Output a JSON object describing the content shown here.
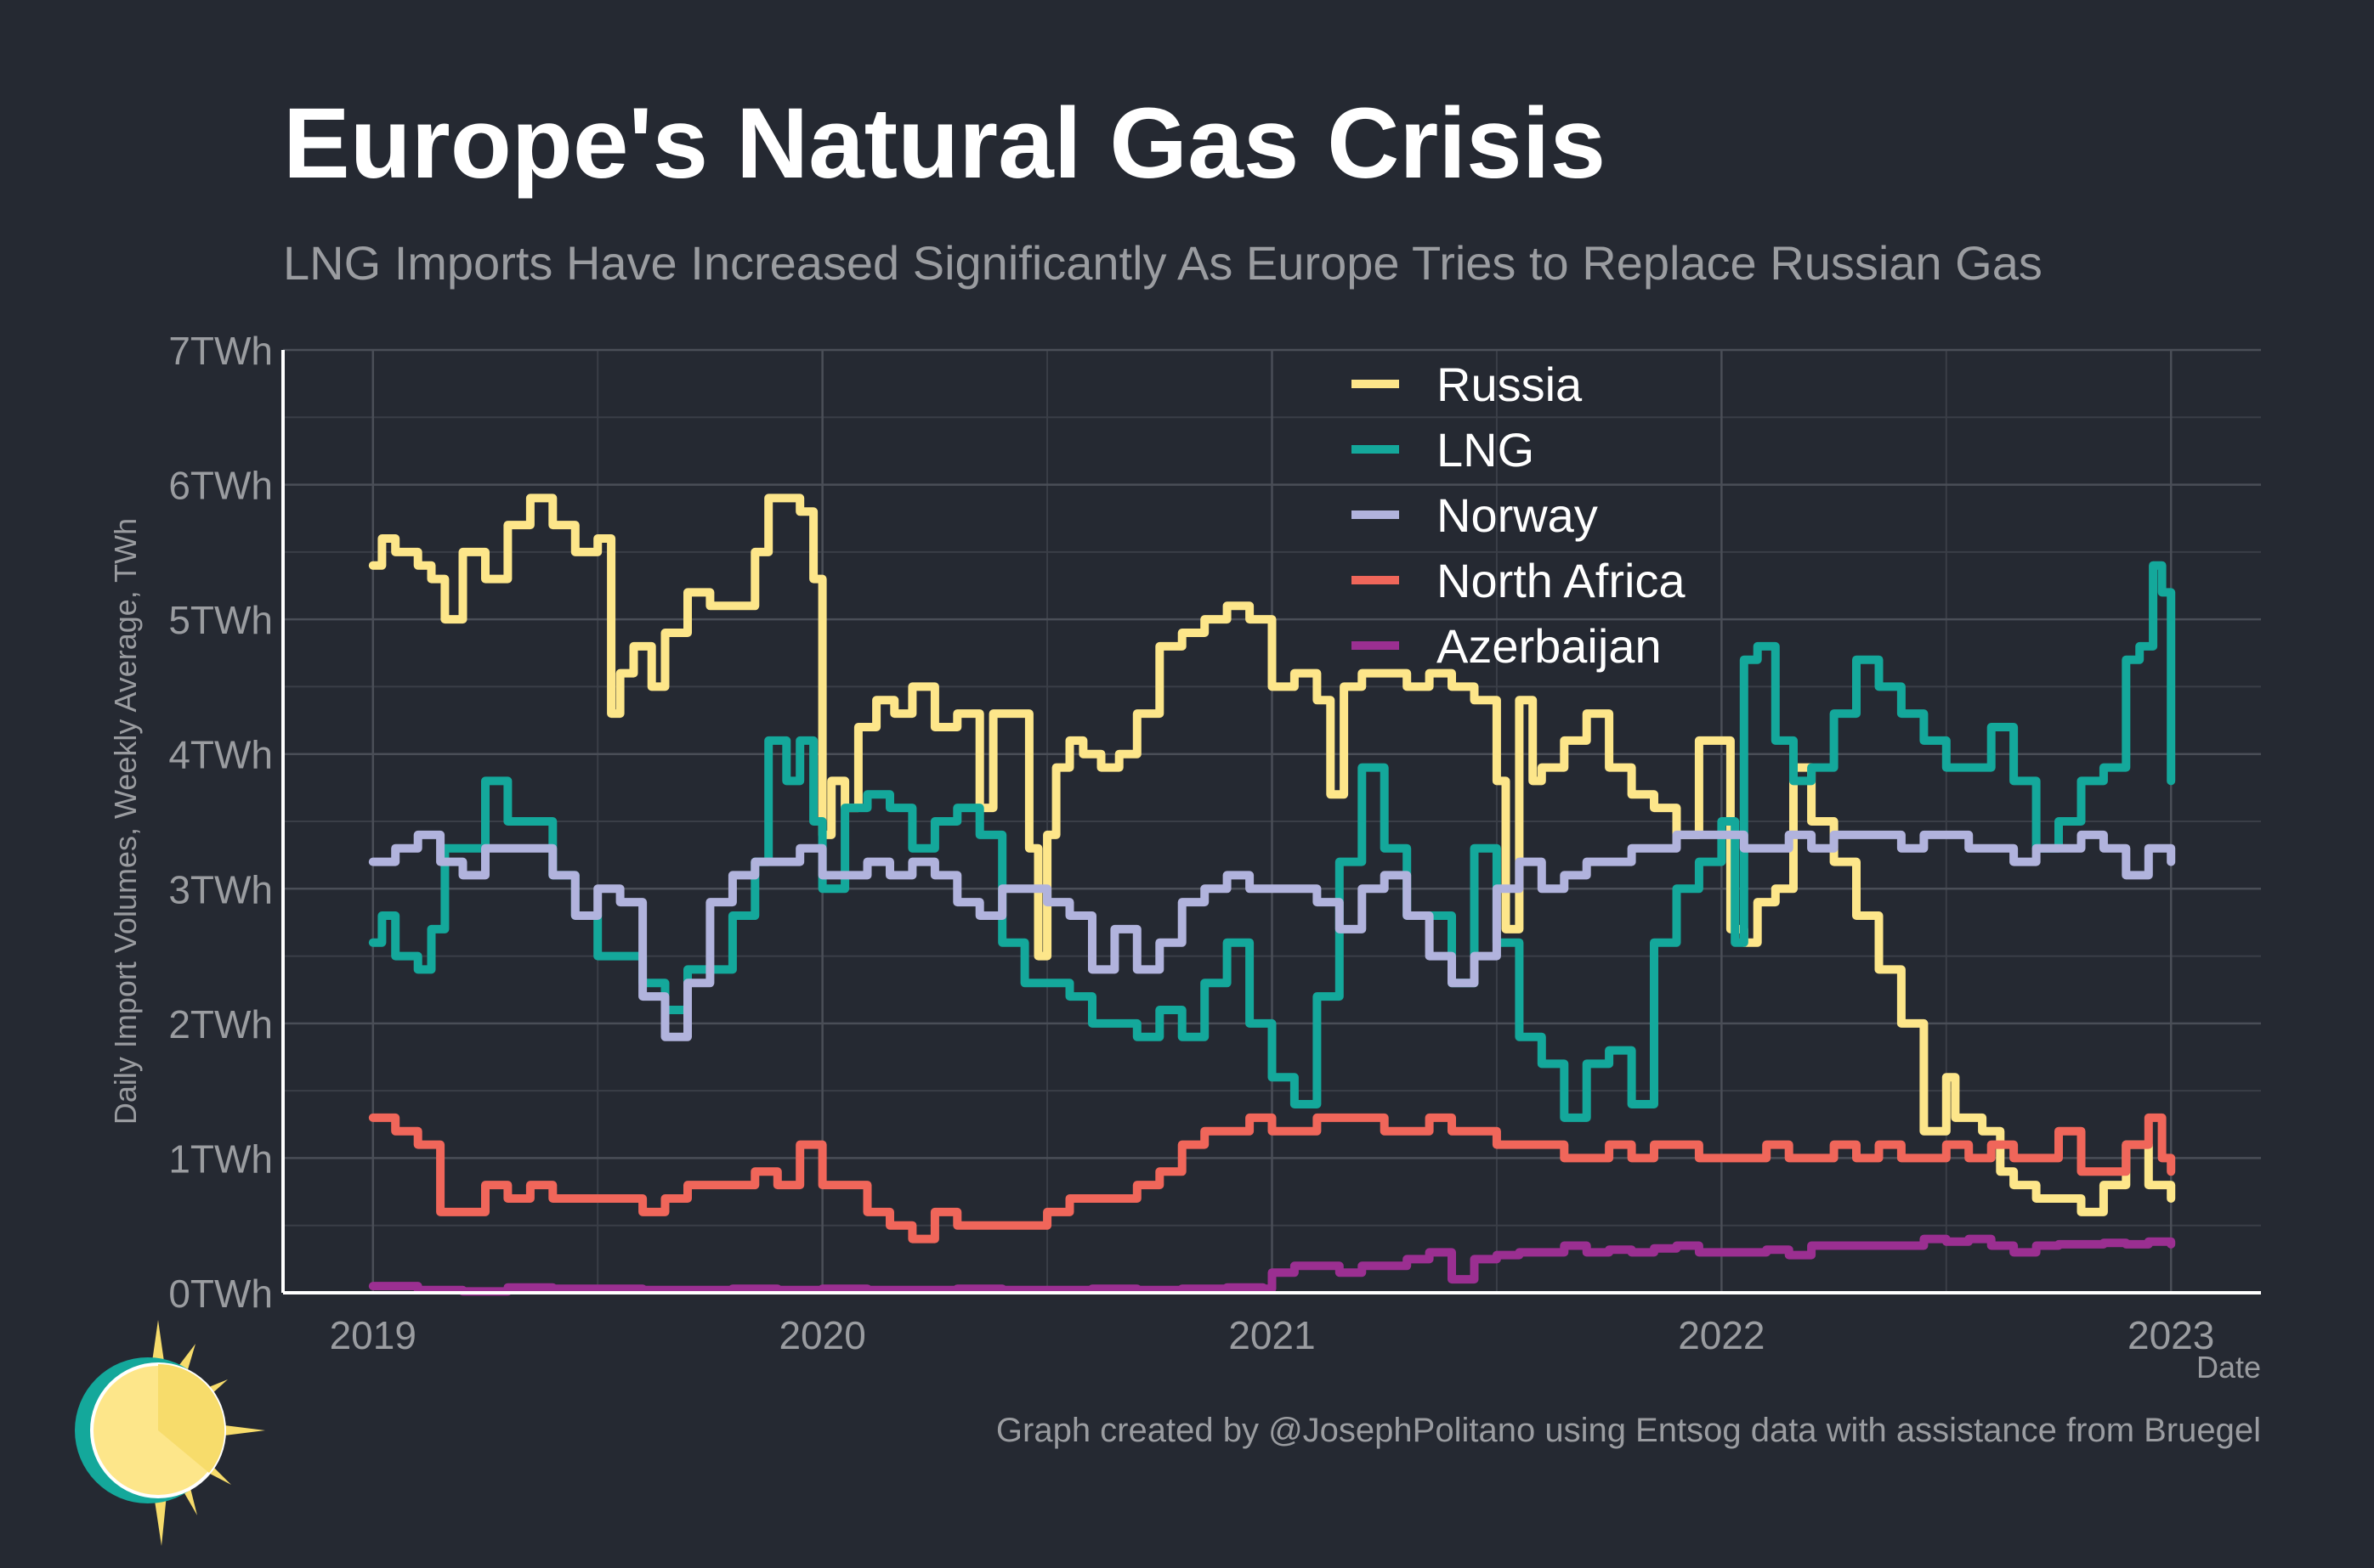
{
  "title": "Europe's Natural Gas Crisis",
  "subtitle": "LNG Imports Have Increased Significantly As Europe Tries to Replace Russian Gas",
  "caption": "Graph created by @JosephPolitano using Entsog data with assistance from Bruegel",
  "logo_icon": "sun-logo-icon",
  "chart_data": {
    "type": "line",
    "step": true,
    "title": "Europe's Natural Gas Crisis",
    "xlabel": "Date",
    "ylabel": "Daily Import Volumes, Weekly Average, TWh",
    "xlim": [
      2018.8,
      2023.2
    ],
    "ylim": [
      0,
      7
    ],
    "x_ticks": [
      {
        "value": 2019,
        "label": "2019"
      },
      {
        "value": 2020,
        "label": "2020"
      },
      {
        "value": 2021,
        "label": "2021"
      },
      {
        "value": 2022,
        "label": "2022"
      },
      {
        "value": 2023,
        "label": "2023"
      }
    ],
    "y_ticks": [
      {
        "value": 0,
        "label": "0TWh"
      },
      {
        "value": 1,
        "label": "1TWh"
      },
      {
        "value": 2,
        "label": "2TWh"
      },
      {
        "value": 3,
        "label": "3TWh"
      },
      {
        "value": 4,
        "label": "4TWh"
      },
      {
        "value": 5,
        "label": "5TWh"
      },
      {
        "value": 6,
        "label": "6TWh"
      },
      {
        "value": 7,
        "label": "7TWh"
      }
    ],
    "legend_position": "top-center",
    "series": [
      {
        "name": "Russia",
        "color": "#fde68a",
        "x": [
          2019.0,
          2019.02,
          2019.05,
          2019.1,
          2019.13,
          2019.16,
          2019.2,
          2019.25,
          2019.3,
          2019.35,
          2019.4,
          2019.45,
          2019.5,
          2019.53,
          2019.55,
          2019.58,
          2019.62,
          2019.65,
          2019.7,
          2019.75,
          2019.8,
          2019.85,
          2019.88,
          2019.92,
          2019.95,
          2019.98,
          2020.0,
          2020.02,
          2020.05,
          2020.08,
          2020.12,
          2020.16,
          2020.2,
          2020.25,
          2020.3,
          2020.35,
          2020.38,
          2020.42,
          2020.46,
          2020.48,
          2020.5,
          2020.52,
          2020.55,
          2020.58,
          2020.62,
          2020.66,
          2020.7,
          2020.75,
          2020.8,
          2020.85,
          2020.9,
          2020.95,
          2021.0,
          2021.05,
          2021.1,
          2021.13,
          2021.16,
          2021.2,
          2021.25,
          2021.3,
          2021.35,
          2021.4,
          2021.45,
          2021.5,
          2021.52,
          2021.55,
          2021.58,
          2021.6,
          2021.65,
          2021.7,
          2021.75,
          2021.8,
          2021.85,
          2021.9,
          2021.95,
          2022.0,
          2022.02,
          2022.05,
          2022.08,
          2022.12,
          2022.16,
          2022.2,
          2022.25,
          2022.3,
          2022.35,
          2022.4,
          2022.45,
          2022.5,
          2022.52,
          2022.55,
          2022.58,
          2022.62,
          2022.65,
          2022.7,
          2022.75,
          2022.8,
          2022.85,
          2022.9,
          2022.95,
          2023.0
        ],
        "values": [
          5.4,
          5.6,
          5.5,
          5.4,
          5.3,
          5.0,
          5.5,
          5.3,
          5.7,
          5.9,
          5.7,
          5.5,
          5.6,
          4.3,
          4.6,
          4.8,
          4.5,
          4.9,
          5.2,
          5.1,
          5.1,
          5.5,
          5.9,
          5.9,
          5.8,
          5.3,
          3.4,
          3.8,
          3.6,
          4.2,
          4.4,
          4.3,
          4.5,
          4.2,
          4.3,
          3.6,
          4.3,
          4.3,
          3.3,
          2.5,
          3.4,
          3.9,
          4.1,
          4.0,
          3.9,
          4.0,
          4.3,
          4.8,
          4.9,
          5.0,
          5.1,
          5.0,
          4.5,
          4.6,
          4.4,
          3.7,
          4.5,
          4.6,
          4.6,
          4.5,
          4.6,
          4.5,
          4.4,
          3.8,
          2.7,
          4.4,
          3.8,
          3.9,
          4.1,
          4.3,
          3.9,
          3.7,
          3.6,
          3.4,
          4.1,
          4.1,
          2.7,
          2.6,
          2.9,
          3.0,
          3.9,
          3.5,
          3.2,
          2.8,
          2.4,
          2.0,
          1.2,
          1.6,
          1.3,
          1.3,
          1.2,
          0.9,
          0.8,
          0.7,
          0.7,
          0.6,
          0.8,
          1.1,
          0.8,
          0.7
        ]
      },
      {
        "name": "LNG",
        "color": "#14a89b",
        "x": [
          2019.0,
          2019.02,
          2019.05,
          2019.1,
          2019.13,
          2019.16,
          2019.2,
          2019.25,
          2019.3,
          2019.35,
          2019.4,
          2019.45,
          2019.5,
          2019.55,
          2019.6,
          2019.65,
          2019.7,
          2019.75,
          2019.8,
          2019.85,
          2019.88,
          2019.92,
          2019.95,
          2019.98,
          2020.0,
          2020.05,
          2020.1,
          2020.15,
          2020.2,
          2020.25,
          2020.3,
          2020.35,
          2020.4,
          2020.45,
          2020.5,
          2020.55,
          2020.6,
          2020.65,
          2020.7,
          2020.75,
          2020.8,
          2020.85,
          2020.9,
          2020.95,
          2021.0,
          2021.05,
          2021.1,
          2021.15,
          2021.2,
          2021.25,
          2021.3,
          2021.35,
          2021.4,
          2021.45,
          2021.5,
          2021.55,
          2021.6,
          2021.65,
          2021.7,
          2021.75,
          2021.8,
          2021.85,
          2021.9,
          2021.95,
          2022.0,
          2022.03,
          2022.05,
          2022.08,
          2022.12,
          2022.16,
          2022.2,
          2022.25,
          2022.3,
          2022.35,
          2022.4,
          2022.45,
          2022.5,
          2022.55,
          2022.6,
          2022.65,
          2022.7,
          2022.75,
          2022.8,
          2022.85,
          2022.9,
          2022.93,
          2022.96,
          2022.98,
          2023.0
        ],
        "values": [
          2.6,
          2.8,
          2.5,
          2.4,
          2.7,
          3.3,
          3.3,
          3.8,
          3.5,
          3.5,
          3.1,
          2.8,
          2.5,
          2.5,
          2.3,
          2.1,
          2.4,
          2.4,
          2.8,
          3.2,
          4.1,
          3.8,
          4.1,
          3.5,
          3.0,
          3.6,
          3.7,
          3.6,
          3.3,
          3.5,
          3.6,
          3.4,
          2.6,
          2.3,
          2.3,
          2.2,
          2.0,
          2.0,
          1.9,
          2.1,
          1.9,
          2.3,
          2.6,
          2.0,
          1.6,
          1.4,
          2.2,
          3.2,
          3.9,
          3.3,
          2.8,
          2.8,
          2.3,
          3.3,
          2.6,
          1.9,
          1.7,
          1.3,
          1.7,
          1.8,
          1.4,
          2.6,
          3.0,
          3.2,
          3.5,
          2.6,
          4.7,
          4.8,
          4.1,
          3.8,
          3.9,
          4.3,
          4.7,
          4.5,
          4.3,
          4.1,
          3.9,
          3.9,
          4.2,
          3.8,
          3.3,
          3.5,
          3.8,
          3.9,
          4.7,
          4.8,
          5.4,
          5.2,
          3.8
        ]
      },
      {
        "name": "Norway",
        "color": "#b1b3dd",
        "x": [
          2019.0,
          2019.05,
          2019.1,
          2019.15,
          2019.2,
          2019.25,
          2019.3,
          2019.35,
          2019.4,
          2019.45,
          2019.5,
          2019.55,
          2019.6,
          2019.65,
          2019.7,
          2019.75,
          2019.8,
          2019.85,
          2019.9,
          2019.95,
          2020.0,
          2020.05,
          2020.1,
          2020.15,
          2020.2,
          2020.25,
          2020.3,
          2020.35,
          2020.4,
          2020.45,
          2020.5,
          2020.55,
          2020.6,
          2020.65,
          2020.7,
          2020.75,
          2020.8,
          2020.85,
          2020.9,
          2020.95,
          2021.0,
          2021.05,
          2021.1,
          2021.15,
          2021.2,
          2021.25,
          2021.3,
          2021.35,
          2021.4,
          2021.45,
          2021.5,
          2021.55,
          2021.6,
          2021.65,
          2021.7,
          2021.75,
          2021.8,
          2021.85,
          2021.9,
          2021.95,
          2022.0,
          2022.05,
          2022.1,
          2022.15,
          2022.2,
          2022.25,
          2022.3,
          2022.35,
          2022.4,
          2022.45,
          2022.5,
          2022.55,
          2022.6,
          2022.65,
          2022.7,
          2022.75,
          2022.8,
          2022.85,
          2022.9,
          2022.95,
          2023.0
        ],
        "values": [
          3.2,
          3.3,
          3.4,
          3.2,
          3.1,
          3.3,
          3.3,
          3.3,
          3.1,
          2.8,
          3.0,
          2.9,
          2.2,
          1.9,
          2.3,
          2.9,
          3.1,
          3.2,
          3.2,
          3.3,
          3.1,
          3.1,
          3.2,
          3.1,
          3.2,
          3.1,
          2.9,
          2.8,
          3.0,
          3.0,
          2.9,
          2.8,
          2.4,
          2.7,
          2.4,
          2.6,
          2.9,
          3.0,
          3.1,
          3.0,
          3.0,
          3.0,
          2.9,
          2.7,
          3.0,
          3.1,
          2.8,
          2.5,
          2.3,
          2.5,
          3.0,
          3.2,
          3.0,
          3.1,
          3.2,
          3.2,
          3.3,
          3.3,
          3.4,
          3.4,
          3.4,
          3.3,
          3.3,
          3.4,
          3.3,
          3.4,
          3.4,
          3.4,
          3.3,
          3.4,
          3.4,
          3.3,
          3.3,
          3.2,
          3.3,
          3.3,
          3.4,
          3.3,
          3.1,
          3.3,
          3.2
        ]
      },
      {
        "name": "North Africa",
        "color": "#f0665a",
        "x": [
          2019.0,
          2019.05,
          2019.1,
          2019.15,
          2019.2,
          2019.25,
          2019.3,
          2019.35,
          2019.4,
          2019.45,
          2019.5,
          2019.55,
          2019.6,
          2019.65,
          2019.7,
          2019.75,
          2019.8,
          2019.85,
          2019.9,
          2019.95,
          2020.0,
          2020.05,
          2020.1,
          2020.15,
          2020.2,
          2020.25,
          2020.3,
          2020.35,
          2020.4,
          2020.45,
          2020.5,
          2020.55,
          2020.6,
          2020.65,
          2020.7,
          2020.75,
          2020.8,
          2020.85,
          2020.9,
          2020.95,
          2021.0,
          2021.05,
          2021.1,
          2021.15,
          2021.2,
          2021.25,
          2021.3,
          2021.35,
          2021.4,
          2021.45,
          2021.5,
          2021.55,
          2021.6,
          2021.65,
          2021.7,
          2021.75,
          2021.8,
          2021.85,
          2021.9,
          2021.95,
          2022.0,
          2022.05,
          2022.1,
          2022.15,
          2022.2,
          2022.25,
          2022.3,
          2022.35,
          2022.4,
          2022.45,
          2022.5,
          2022.55,
          2022.6,
          2022.65,
          2022.7,
          2022.75,
          2022.8,
          2022.85,
          2022.9,
          2022.95,
          2022.98,
          2023.0
        ],
        "values": [
          1.3,
          1.2,
          1.1,
          0.6,
          0.6,
          0.8,
          0.7,
          0.8,
          0.7,
          0.7,
          0.7,
          0.7,
          0.6,
          0.7,
          0.8,
          0.8,
          0.8,
          0.9,
          0.8,
          1.1,
          0.8,
          0.8,
          0.6,
          0.5,
          0.4,
          0.6,
          0.5,
          0.5,
          0.5,
          0.5,
          0.6,
          0.7,
          0.7,
          0.7,
          0.8,
          0.9,
          1.1,
          1.2,
          1.2,
          1.3,
          1.2,
          1.2,
          1.3,
          1.3,
          1.3,
          1.2,
          1.2,
          1.3,
          1.2,
          1.2,
          1.1,
          1.1,
          1.1,
          1.0,
          1.0,
          1.1,
          1.0,
          1.1,
          1.1,
          1.0,
          1.0,
          1.0,
          1.1,
          1.0,
          1.0,
          1.1,
          1.0,
          1.1,
          1.0,
          1.0,
          1.1,
          1.0,
          1.1,
          1.0,
          1.0,
          1.2,
          0.9,
          0.9,
          1.1,
          1.3,
          1.0,
          0.9
        ]
      },
      {
        "name": "Azerbaijan",
        "color": "#9b2f91",
        "x": [
          2019.0,
          2019.1,
          2019.2,
          2019.3,
          2019.4,
          2019.5,
          2019.6,
          2019.7,
          2019.8,
          2019.9,
          2020.0,
          2020.1,
          2020.2,
          2020.3,
          2020.4,
          2020.5,
          2020.6,
          2020.7,
          2020.8,
          2020.9,
          2020.98,
          2021.0,
          2021.05,
          2021.1,
          2021.15,
          2021.2,
          2021.25,
          2021.3,
          2021.35,
          2021.4,
          2021.45,
          2021.5,
          2021.55,
          2021.6,
          2021.65,
          2021.7,
          2021.75,
          2021.8,
          2021.85,
          2021.9,
          2021.95,
          2022.0,
          2022.05,
          2022.1,
          2022.15,
          2022.2,
          2022.25,
          2022.3,
          2022.35,
          2022.4,
          2022.45,
          2022.5,
          2022.55,
          2022.6,
          2022.65,
          2022.7,
          2022.75,
          2022.8,
          2022.85,
          2022.9,
          2022.95,
          2023.0
        ],
        "values": [
          0.05,
          0.02,
          0.01,
          0.04,
          0.03,
          0.03,
          0.02,
          0.02,
          0.03,
          0.02,
          0.03,
          0.02,
          0.02,
          0.03,
          0.02,
          0.02,
          0.03,
          0.02,
          0.03,
          0.04,
          0.03,
          0.15,
          0.2,
          0.2,
          0.15,
          0.2,
          0.2,
          0.25,
          0.3,
          0.1,
          0.25,
          0.28,
          0.3,
          0.3,
          0.35,
          0.3,
          0.32,
          0.3,
          0.33,
          0.35,
          0.3,
          0.3,
          0.3,
          0.32,
          0.28,
          0.35,
          0.35,
          0.35,
          0.35,
          0.35,
          0.4,
          0.38,
          0.4,
          0.35,
          0.3,
          0.35,
          0.36,
          0.36,
          0.37,
          0.36,
          0.38,
          0.36
        ]
      }
    ]
  }
}
